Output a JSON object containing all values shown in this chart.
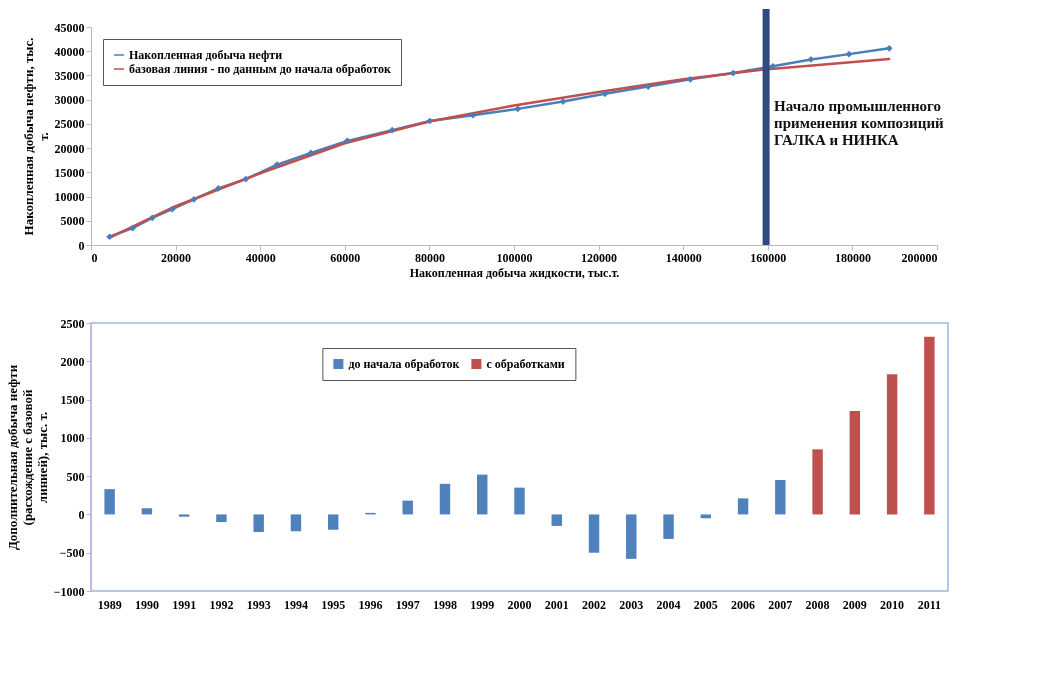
{
  "chart_data": [
    {
      "type": "line",
      "xlabel": "Накопленная добыча жидкости, тыс.т.",
      "ylabel": "Накопленная добыча нефти, тыс. т.",
      "xlim": [
        0,
        200000
      ],
      "xticks": [
        0,
        20000,
        40000,
        60000,
        80000,
        100000,
        120000,
        140000,
        160000,
        180000,
        200000
      ],
      "ylim": [
        0,
        45000
      ],
      "yticks": [
        0,
        5000,
        10000,
        15000,
        20000,
        25000,
        30000,
        35000,
        40000,
        45000
      ],
      "grid": false,
      "legend": "top left",
      "series": [
        {
          "name": "Накопленная добыча нефти",
          "color": "#4a7ebb",
          "marker": "diamond",
          "x": [
            4400,
            9850,
            14500,
            19200,
            24300,
            30100,
            36600,
            44000,
            52000,
            60600,
            71200,
            80100,
            90300,
            100900,
            111600,
            121500,
            131700,
            141700,
            151800,
            161200,
            170200,
            179200,
            188700
          ],
          "values": [
            1700,
            3500,
            5600,
            7400,
            9400,
            11700,
            13600,
            16600,
            19000,
            21500,
            23700,
            25600,
            26800,
            28100,
            29600,
            31200,
            32700,
            34200,
            35500,
            36900,
            38300,
            39400,
            40600
          ]
        },
        {
          "name": "базовая линия - по данным до начала обработок",
          "color": "#c0504d",
          "marker": "none",
          "x": [
            4400,
            20000,
            40000,
            60000,
            80000,
            100000,
            120000,
            140000,
            160000,
            188700
          ],
          "values": [
            1500,
            8000,
            14800,
            21000,
            25500,
            28800,
            31600,
            34200,
            36300,
            38400
          ]
        }
      ],
      "ref_lines": [
        {
          "axis": "x",
          "value": 159600,
          "label": "Начало промышленного применения композиций ГАЛКА и НИНКА",
          "color": "#2f4b7c"
        }
      ]
    },
    {
      "type": "bar",
      "ylabel": "Дополнительная добыча нефти (расхождение с базовой линией), тыс. т.",
      "categories": [
        "1989",
        "1990",
        "1991",
        "1992",
        "1993",
        "1994",
        "1995",
        "1996",
        "1997",
        "1998",
        "1999",
        "2000",
        "2001",
        "2002",
        "2003",
        "2004",
        "2005",
        "2006",
        "2007",
        "2008",
        "2009",
        "2010",
        "2011"
      ],
      "ylim": [
        -1000,
        2500
      ],
      "yticks": [
        -1000,
        -500,
        0,
        500,
        1000,
        1500,
        2000,
        2500
      ],
      "grid": false,
      "legend": "top",
      "series": [
        {
          "name": "до начала обработок",
          "color": "#4f81bd",
          "values": [
            330,
            80,
            -30,
            -100,
            -230,
            -220,
            -200,
            20,
            180,
            400,
            520,
            350,
            -150,
            -500,
            -580,
            -320,
            -50,
            210,
            450,
            null,
            null,
            null,
            null
          ]
        },
        {
          "name": "с обработками",
          "color": "#c0504d",
          "values": [
            null,
            null,
            null,
            null,
            null,
            null,
            null,
            null,
            null,
            null,
            null,
            null,
            null,
            null,
            null,
            null,
            null,
            null,
            null,
            850,
            1350,
            1830,
            2320
          ]
        }
      ]
    }
  ]
}
